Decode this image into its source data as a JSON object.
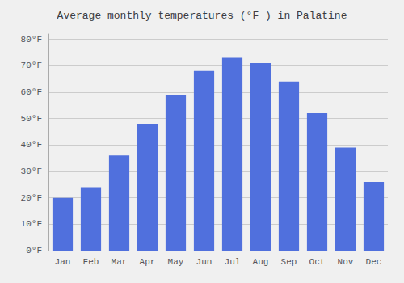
{
  "chart_data": {
    "type": "bar",
    "title": "Average monthly temperatures (°F ) in Palatine",
    "categories": [
      "Jan",
      "Feb",
      "Mar",
      "Apr",
      "May",
      "Jun",
      "Jul",
      "Aug",
      "Sep",
      "Oct",
      "Nov",
      "Dec"
    ],
    "values": [
      20,
      24,
      36,
      48,
      59,
      68,
      73,
      71,
      64,
      52,
      39,
      26
    ],
    "ylim": [
      0,
      82
    ],
    "yticks": [
      {
        "value": 0,
        "label": "0°F"
      },
      {
        "value": 10,
        "label": "10°F"
      },
      {
        "value": 20,
        "label": "20°F"
      },
      {
        "value": 30,
        "label": "30°F"
      },
      {
        "value": 40,
        "label": "40°F"
      },
      {
        "value": 50,
        "label": "50°F"
      },
      {
        "value": 60,
        "label": "60°F"
      },
      {
        "value": 70,
        "label": "70°F"
      },
      {
        "value": 80,
        "label": "80°F"
      }
    ],
    "grid": true
  }
}
